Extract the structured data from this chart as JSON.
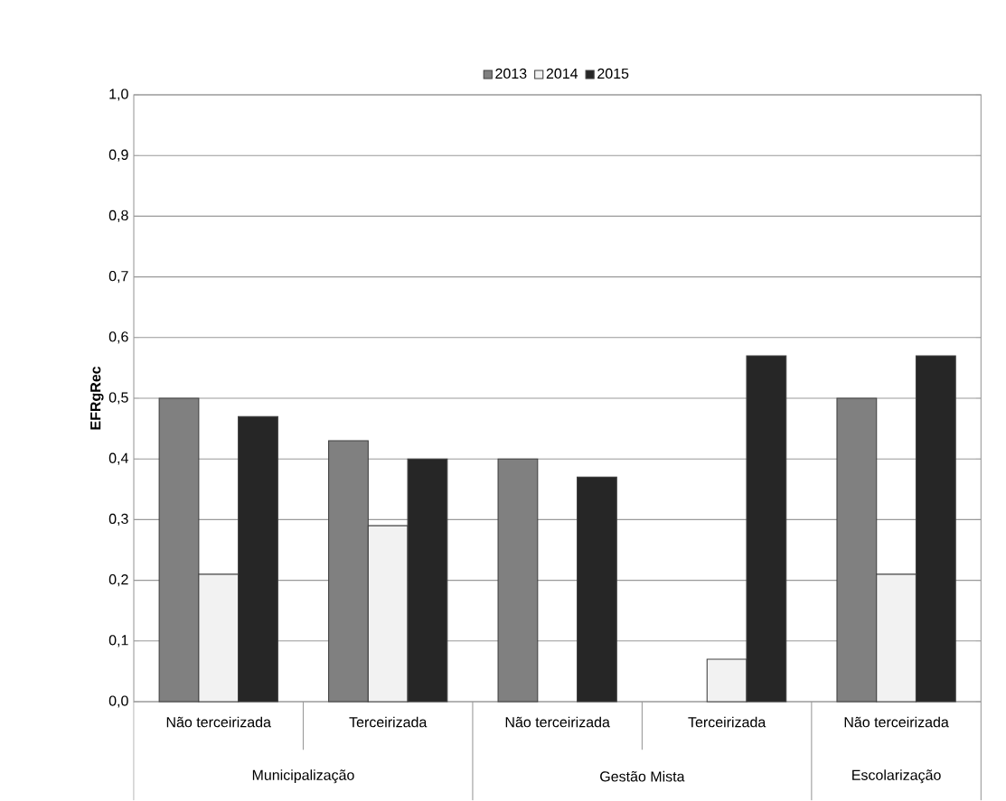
{
  "chart_data": {
    "type": "bar",
    "ylabel": "EFRgRec",
    "categories": [
      "Não terceirizada",
      "Terceirizada",
      "Não terceirizada",
      "Terceirizada",
      "Não terceirizada"
    ],
    "annotations": [
      "Municipalização",
      "Gestão Mista",
      "Escolarização"
    ],
    "series": [
      {
        "name": "2013",
        "color": "#808080",
        "values": [
          0.5,
          0.43,
          0.4,
          null,
          0.5
        ]
      },
      {
        "name": "2014",
        "color": "#f2f2f2",
        "values": [
          0.21,
          0.29,
          null,
          0.07,
          0.21
        ]
      },
      {
        "name": "2015",
        "color": "#262626",
        "values": [
          0.47,
          0.4,
          0.37,
          0.57,
          0.57
        ]
      }
    ],
    "ylim": [
      0,
      1
    ],
    "yticks": [
      {
        "value": 0,
        "label": "0,0"
      },
      {
        "value": 0.1,
        "label": "0,1"
      },
      {
        "value": 0.2,
        "label": "0,2"
      },
      {
        "value": 0.3,
        "label": "0,3"
      },
      {
        "value": 0.4,
        "label": "0,4"
      },
      {
        "value": 0.5,
        "label": "0,5"
      },
      {
        "value": 0.6,
        "label": "0,6"
      },
      {
        "value": 0.7,
        "label": "0,7"
      },
      {
        "value": 0.8,
        "label": "0,8"
      },
      {
        "value": 0.9,
        "label": "0,9"
      },
      {
        "value": 1,
        "label": "1,0"
      }
    ],
    "grid": "y",
    "legend": "top"
  }
}
